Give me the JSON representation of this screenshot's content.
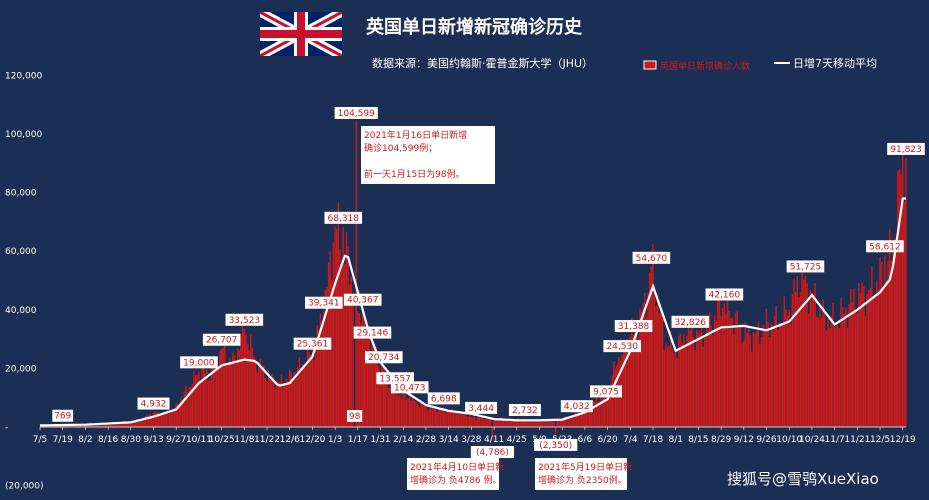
{
  "chart_data": {
    "type": "bar",
    "title": "英国单日新增新冠确诊历史",
    "subtitle": "数据来源：美国约翰斯·霍普金斯大学（JHU）",
    "ylim": [
      -20000,
      120000
    ],
    "y_ticks": [
      "(20,000)",
      "-",
      "20,000",
      "40,000",
      "60,000",
      "80,000",
      "100,000",
      "120,000"
    ],
    "y_tick_values": [
      -20000,
      0,
      20000,
      40000,
      60000,
      80000,
      100000,
      120000
    ],
    "x_tick_labels": [
      "7/5",
      "7/19",
      "8/2",
      "8/16",
      "8/30",
      "9/13",
      "9/27",
      "10/11",
      "10/25",
      "11/8",
      "11/22",
      "12/6",
      "12/20",
      "1/3",
      "1/17",
      "1/31",
      "2/14",
      "2/28",
      "3/14",
      "3/28",
      "4/11",
      "4/25",
      "5/9",
      "5/23",
      "6/6",
      "6/20",
      "7/4",
      "7/18",
      "8/1",
      "8/15",
      "8/29",
      "9/12",
      "9/26",
      "10/10",
      "10/24",
      "11/7",
      "11/21",
      "12/5",
      "12/19"
    ],
    "start_date": "2020-07-05",
    "legend": [
      {
        "name": "英国单日新增确诊人数",
        "type": "bar",
        "color": "#cc1a1a"
      },
      {
        "name": "日增7天移动平均",
        "type": "line",
        "color": "#ffffff"
      }
    ],
    "series": [
      {
        "name": "英国单日新增确诊人数",
        "values_by_date": [
          [
            "2020-07-05",
            400
          ],
          [
            "2020-07-12",
            650
          ],
          [
            "2020-07-19",
            769
          ],
          [
            "2020-07-26",
            750
          ],
          [
            "2020-08-02",
            900
          ],
          [
            "2020-08-09",
            1000
          ],
          [
            "2020-08-16",
            1100
          ],
          [
            "2020-08-23",
            1300
          ],
          [
            "2020-08-30",
            1700
          ],
          [
            "2020-09-06",
            2900
          ],
          [
            "2020-09-13",
            4932
          ],
          [
            "2020-09-20",
            4500
          ],
          [
            "2020-09-27",
            7000
          ],
          [
            "2020-10-04",
            13000
          ],
          [
            "2020-10-11",
            19000
          ],
          [
            "2020-10-18",
            18000
          ],
          [
            "2020-10-25",
            26707
          ],
          [
            "2020-11-01",
            22000
          ],
          [
            "2020-11-08",
            33523
          ],
          [
            "2020-11-15",
            23000
          ],
          [
            "2020-11-22",
            18000
          ],
          [
            "2020-11-29",
            15000
          ],
          [
            "2020-12-06",
            17000
          ],
          [
            "2020-12-13",
            21000
          ],
          [
            "2020-12-20",
            25361
          ],
          [
            "2020-12-27",
            39341
          ],
          [
            "2021-01-03",
            68318
          ],
          [
            "2021-01-10",
            59000
          ],
          [
            "2021-01-17",
            40367
          ],
          [
            "2021-01-24",
            29146
          ],
          [
            "2021-01-31",
            20734
          ],
          [
            "2021-02-07",
            13557
          ],
          [
            "2021-02-14",
            10473
          ],
          [
            "2021-02-21",
            9000
          ],
          [
            "2021-02-28",
            6698
          ],
          [
            "2021-03-07",
            6000
          ],
          [
            "2021-03-14",
            5500
          ],
          [
            "2021-03-21",
            5000
          ],
          [
            "2021-03-28",
            3444
          ],
          [
            "2021-04-04",
            3000
          ],
          [
            "2021-04-11",
            2600
          ],
          [
            "2021-04-18",
            2500
          ],
          [
            "2021-04-25",
            2732
          ],
          [
            "2021-05-02",
            2300
          ],
          [
            "2021-05-09",
            2200
          ],
          [
            "2021-05-16",
            2500
          ],
          [
            "2021-05-23",
            2800
          ],
          [
            "2021-05-30",
            4032
          ],
          [
            "2021-06-06",
            6000
          ],
          [
            "2021-06-13",
            9075
          ],
          [
            "2021-06-20",
            12000
          ],
          [
            "2021-06-27",
            24530
          ],
          [
            "2021-07-04",
            31388
          ],
          [
            "2021-07-11",
            38000
          ],
          [
            "2021-07-18",
            54670
          ],
          [
            "2021-07-25",
            30000
          ],
          [
            "2021-08-01",
            26000
          ],
          [
            "2021-08-08",
            32826
          ],
          [
            "2021-08-15",
            31000
          ],
          [
            "2021-08-22",
            34000
          ],
          [
            "2021-08-29",
            42160
          ],
          [
            "2021-09-05",
            38000
          ],
          [
            "2021-09-12",
            32000
          ],
          [
            "2021-09-19",
            31000
          ],
          [
            "2021-09-26",
            35000
          ],
          [
            "2021-10-03",
            36000
          ],
          [
            "2021-10-10",
            40000
          ],
          [
            "2021-10-17",
            51725
          ],
          [
            "2021-10-24",
            45000
          ],
          [
            "2021-10-31",
            38000
          ],
          [
            "2021-11-07",
            36000
          ],
          [
            "2021-11-14",
            40000
          ],
          [
            "2021-11-21",
            45000
          ],
          [
            "2021-11-28",
            46000
          ],
          [
            "2021-12-05",
            51000
          ],
          [
            "2021-12-12",
            58612
          ],
          [
            "2021-12-19",
            91823
          ]
        ]
      },
      {
        "name": "日增7天移动平均",
        "values_by_date": [
          [
            "2020-07-05",
            550
          ],
          [
            "2020-08-02",
            800
          ],
          [
            "2020-08-30",
            1600
          ],
          [
            "2020-09-13",
            3500
          ],
          [
            "2020-09-27",
            6000
          ],
          [
            "2020-10-11",
            15000
          ],
          [
            "2020-10-25",
            21000
          ],
          [
            "2020-11-08",
            23000
          ],
          [
            "2020-11-15",
            22500
          ],
          [
            "2020-11-29",
            14000
          ],
          [
            "2020-12-06",
            15000
          ],
          [
            "2020-12-20",
            24000
          ],
          [
            "2021-01-03",
            49000
          ],
          [
            "2021-01-10",
            60000
          ],
          [
            "2021-01-17",
            46000
          ],
          [
            "2021-01-24",
            32000
          ],
          [
            "2021-01-31",
            22000
          ],
          [
            "2021-02-14",
            12500
          ],
          [
            "2021-02-28",
            7500
          ],
          [
            "2021-03-14",
            5500
          ],
          [
            "2021-03-28",
            4500
          ],
          [
            "2021-04-11",
            2700
          ],
          [
            "2021-04-25",
            2300
          ],
          [
            "2021-05-09",
            2300
          ],
          [
            "2021-05-23",
            2500
          ],
          [
            "2021-06-06",
            5000
          ],
          [
            "2021-06-20",
            9500
          ],
          [
            "2021-07-04",
            26000
          ],
          [
            "2021-07-18",
            48000
          ],
          [
            "2021-08-01",
            26000
          ],
          [
            "2021-08-15",
            30000
          ],
          [
            "2021-08-29",
            34000
          ],
          [
            "2021-09-12",
            34500
          ],
          [
            "2021-09-26",
            33000
          ],
          [
            "2021-10-10",
            36000
          ],
          [
            "2021-10-24",
            45000
          ],
          [
            "2021-11-07",
            35000
          ],
          [
            "2021-11-21",
            40000
          ],
          [
            "2021-12-05",
            46000
          ],
          [
            "2021-12-12",
            51000
          ],
          [
            "2021-12-19",
            78000
          ]
        ]
      }
    ],
    "data_labels": [
      {
        "date": "2020-07-19",
        "value": 769,
        "text": "769"
      },
      {
        "date": "2020-09-13",
        "value": 4932,
        "text": "4,932"
      },
      {
        "date": "2020-10-11",
        "value": 19000,
        "text": "19,000"
      },
      {
        "date": "2020-10-25",
        "value": 26707,
        "text": "26,707"
      },
      {
        "date": "2020-11-08",
        "value": 33523,
        "text": "33,523"
      },
      {
        "date": "2020-12-20",
        "value": 25361,
        "text": "25,361"
      },
      {
        "date": "2020-12-27",
        "value": 39341,
        "text": "39,341"
      },
      {
        "date": "2021-01-08",
        "value": 68318,
        "text": "68,318"
      },
      {
        "date": "2021-01-16",
        "value": 104599,
        "text": "104,599"
      },
      {
        "date": "2021-01-15",
        "value": 98,
        "text": "98"
      },
      {
        "date": "2021-01-20",
        "value": 40367,
        "text": "40,367"
      },
      {
        "date": "2021-01-26",
        "value": 29146,
        "text": "29,146"
      },
      {
        "date": "2021-02-02",
        "value": 20734,
        "text": "20,734"
      },
      {
        "date": "2021-02-09",
        "value": 13557,
        "text": "13,557"
      },
      {
        "date": "2021-02-18",
        "value": 10473,
        "text": "10,473"
      },
      {
        "date": "2021-03-11",
        "value": 6698,
        "text": "6,698"
      },
      {
        "date": "2021-04-03",
        "value": 3444,
        "text": "3,444"
      },
      {
        "date": "2021-04-10",
        "value": -4786,
        "text": "(4,786)"
      },
      {
        "date": "2021-04-30",
        "value": 2732,
        "text": "2,732"
      },
      {
        "date": "2021-05-19",
        "value": -2350,
        "text": "(2,350)"
      },
      {
        "date": "2021-06-01",
        "value": 4032,
        "text": "4,032"
      },
      {
        "date": "2021-06-19",
        "value": 9075,
        "text": "9,075"
      },
      {
        "date": "2021-06-29",
        "value": 24530,
        "text": "24,530"
      },
      {
        "date": "2021-07-06",
        "value": 31388,
        "text": "31,388"
      },
      {
        "date": "2021-07-17",
        "value": 54670,
        "text": "54,670"
      },
      {
        "date": "2021-08-10",
        "value": 32826,
        "text": "32,826"
      },
      {
        "date": "2021-08-31",
        "value": 42160,
        "text": "42,160"
      },
      {
        "date": "2021-10-20",
        "value": 51725,
        "text": "51,725"
      },
      {
        "date": "2021-12-08",
        "value": 58612,
        "text": "58,612"
      },
      {
        "date": "2021-12-21",
        "value": 91823,
        "text": "91,823"
      }
    ],
    "annotations": [
      {
        "date": "2021-01-16",
        "lines": [
          "2021年1月16日单日新增",
          "确诊104,599例；",
          "",
          "前一天1月15日为98例。"
        ]
      },
      {
        "date": "2021-04-10",
        "lines": [
          "2021年4月10日单日新",
          "增确诊为 负4786 例。"
        ]
      },
      {
        "date": "2021-05-19",
        "lines": [
          "2021年5月19日单日新",
          "增确诊为 负2350例。"
        ]
      }
    ]
  },
  "watermark": "搜狐号@雪鸮XueXiao",
  "colors": {
    "background": "#1b2f55",
    "bar": "#cc1a1a",
    "line": "#ffffff",
    "label_box": "#ffffff",
    "label_text": "#cc1a1a"
  }
}
